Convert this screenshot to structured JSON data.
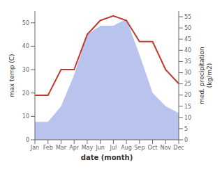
{
  "chart_data": {
    "type": "line",
    "categories": [
      "Jan",
      "Feb",
      "Mar",
      "Apr",
      "May",
      "Jun",
      "Jul",
      "Aug",
      "Sep",
      "Oct",
      "Nov",
      "Dec"
    ],
    "series": [
      {
        "type": "area",
        "color": "#b8c4ee",
        "axis": "y2",
        "values": [
          8,
          8,
          15,
          29,
          47,
          51,
          51,
          54,
          38,
          21,
          15,
          12
        ]
      },
      {
        "type": "line",
        "color": "#c0392b",
        "values": [
          19,
          19,
          30,
          30,
          45,
          51,
          53,
          51,
          42,
          42,
          30,
          24
        ]
      }
    ],
    "xlabel": "date (month)",
    "ylabel": "max temp (C)",
    "y2label": "med. precipitation\n(kg/m2)",
    "ylim": [
      0,
      55
    ],
    "yticks": [
      0,
      10,
      20,
      30,
      40,
      50
    ],
    "y2lim": [
      0,
      57.5
    ],
    "y2ticks": [
      0,
      5,
      10,
      15,
      20,
      25,
      30,
      35,
      40,
      45,
      50,
      55
    ]
  }
}
